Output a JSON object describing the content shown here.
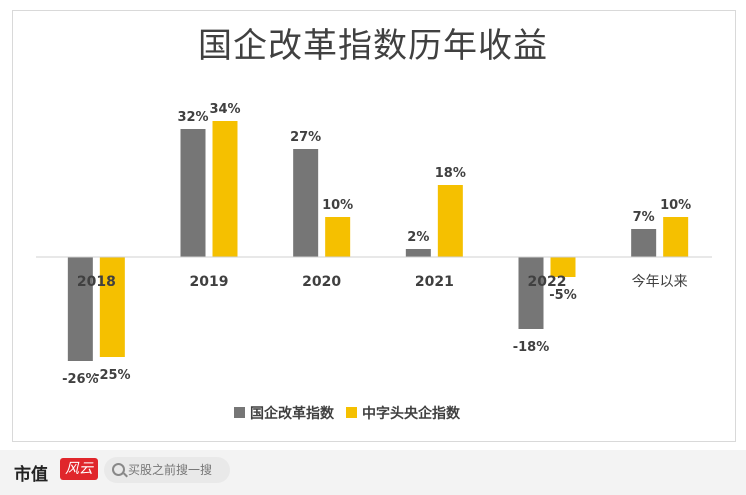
{
  "chart_data": {
    "type": "bar",
    "title": "国企改革指数历年收益",
    "categories": [
      "2018",
      "2019",
      "2020",
      "2021",
      "2022",
      "今年以来"
    ],
    "series": [
      {
        "name": "国企改革指数",
        "values": [
          -26,
          32,
          27,
          2,
          -18,
          7
        ],
        "labels": [
          "-26%",
          "32%",
          "27%",
          "2%",
          "-18%",
          "7%"
        ],
        "color": "#767676"
      },
      {
        "name": "中字头央企指数",
        "values": [
          -25,
          34,
          10,
          18,
          -5,
          10
        ],
        "labels": [
          "-25%",
          "34%",
          "10%",
          "18%",
          "-5%",
          "10%"
        ],
        "color": "#f5c000"
      }
    ],
    "ylim": [
      -30,
      40
    ],
    "legend_position": "bottom",
    "grid": false
  },
  "footer": {
    "brand": "市值",
    "brand_logo": "风云",
    "search_placeholder": "买股之前搜一搜",
    "search_icon": "search-icon"
  }
}
